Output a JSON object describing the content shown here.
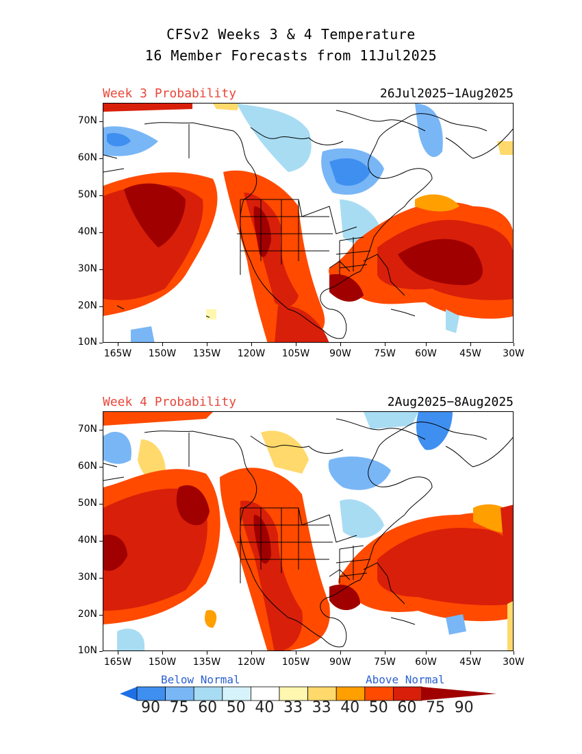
{
  "title_line1": "CFSv2 Weeks 3 & 4 Temperature",
  "title_line2": "16 Member Forecasts from 11Jul2025",
  "panels": [
    {
      "label": "Week 3 Probability",
      "dates": "26Jul2025−1Aug2025"
    },
    {
      "label": "Week 4 Probability",
      "dates": "2Aug2025−8Aug2025"
    }
  ],
  "lat_labels": [
    "70N",
    "60N",
    "50N",
    "40N",
    "30N",
    "20N",
    "10N"
  ],
  "lon_labels": [
    "165W",
    "150W",
    "135W",
    "120W",
    "105W",
    "90W",
    "75W",
    "60W",
    "45W",
    "30W"
  ],
  "legend": {
    "below_label": "Below Normal",
    "above_label": "Above Normal",
    "values": [
      "90",
      "75",
      "60",
      "50",
      "40",
      "33",
      "33",
      "40",
      "50",
      "60",
      "75",
      "90"
    ],
    "colors": [
      "#1f6fe6",
      "#3f8ff0",
      "#79b6f6",
      "#a8dcf3",
      "#d6f3fb",
      "#ffffff",
      "#fff7b0",
      "#ffd96b",
      "#ff9f00",
      "#ff4a00",
      "#d81f0a",
      "#a00000"
    ]
  }
}
